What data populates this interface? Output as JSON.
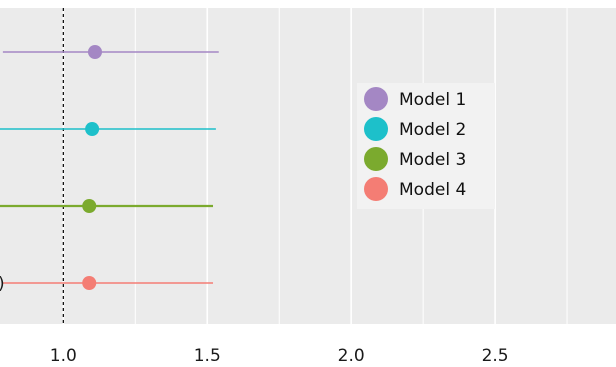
{
  "chart_data": {
    "type": "forest",
    "title": "",
    "xlabel": "",
    "ylabel": "",
    "xlim": [
      0.78,
      2.92
    ],
    "x_ticks": [
      1.0,
      1.5,
      2.0,
      2.5
    ],
    "x_tick_labels": [
      "1.0",
      "1.5",
      "2.0",
      "2.5"
    ],
    "reference_line": 1.0,
    "grid": true,
    "legend_position": "right",
    "series": [
      {
        "name": "Model 1",
        "estimate": 1.11,
        "lower": 0.79,
        "upper": 1.54,
        "color": "#A487C4"
      },
      {
        "name": "Model 2",
        "estimate": 1.1,
        "lower": 0.78,
        "upper": 1.53,
        "color": "#1DC0CA"
      },
      {
        "name": "Model 3",
        "estimate": 1.09,
        "lower": 0.77,
        "upper": 1.52,
        "color": "#7BAA2E"
      },
      {
        "name": "Model 4",
        "estimate": 1.09,
        "lower": 0.79,
        "upper": 1.52,
        "color": "#F47D74"
      }
    ],
    "row_labels": [
      "",
      "",
      "",
      ")"
    ]
  }
}
